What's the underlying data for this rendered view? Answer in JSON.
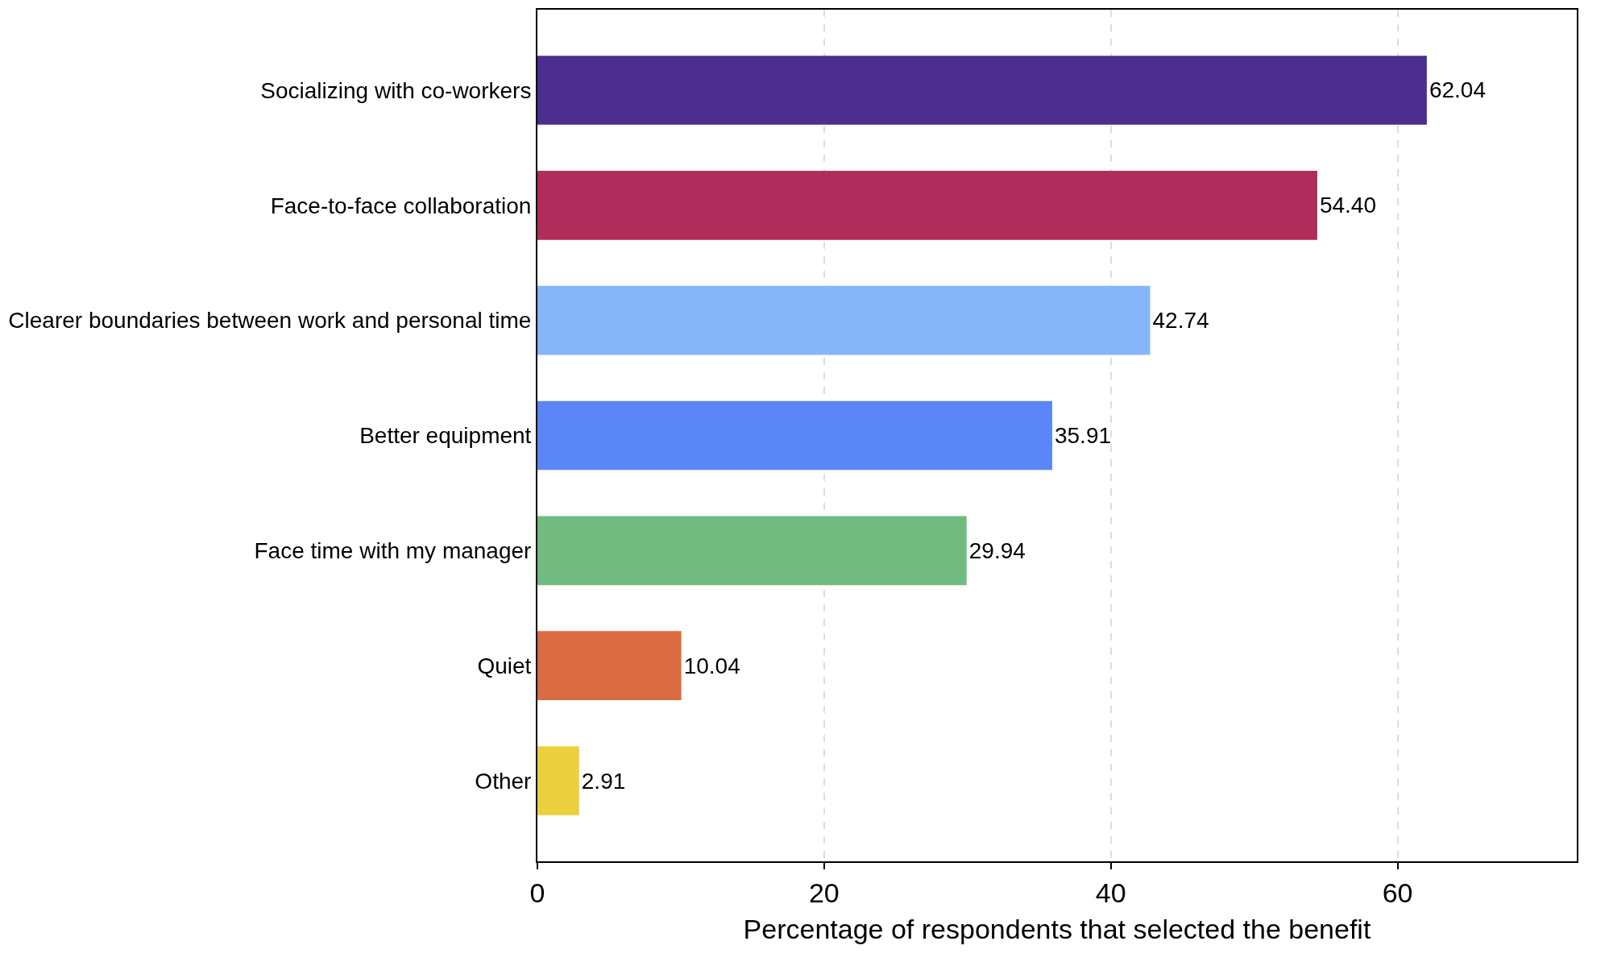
{
  "chart_data": {
    "type": "bar",
    "orientation": "horizontal",
    "xlabel": "Percentage of respondents that selected the benefit",
    "categories": [
      "Socializing with co-workers",
      "Face-to-face collaboration",
      "Clearer boundaries between work and personal time",
      "Better equipment",
      "Face time with my manager",
      "Quiet",
      "Other"
    ],
    "values": [
      62.04,
      54.4,
      42.74,
      35.91,
      29.94,
      10.04,
      2.91
    ],
    "value_labels": [
      "62.04",
      "54.40",
      "42.74",
      "35.91",
      "29.94",
      "10.04",
      "2.91"
    ],
    "colors": [
      "#4b2e8f",
      "#b02c5a",
      "#85b6fa",
      "#5b86f7",
      "#72bb80",
      "#db6b40",
      "#ecd03d"
    ],
    "xlim": [
      0,
      72.5
    ],
    "xticks": [
      0,
      20,
      40,
      60
    ],
    "grid": "x"
  }
}
